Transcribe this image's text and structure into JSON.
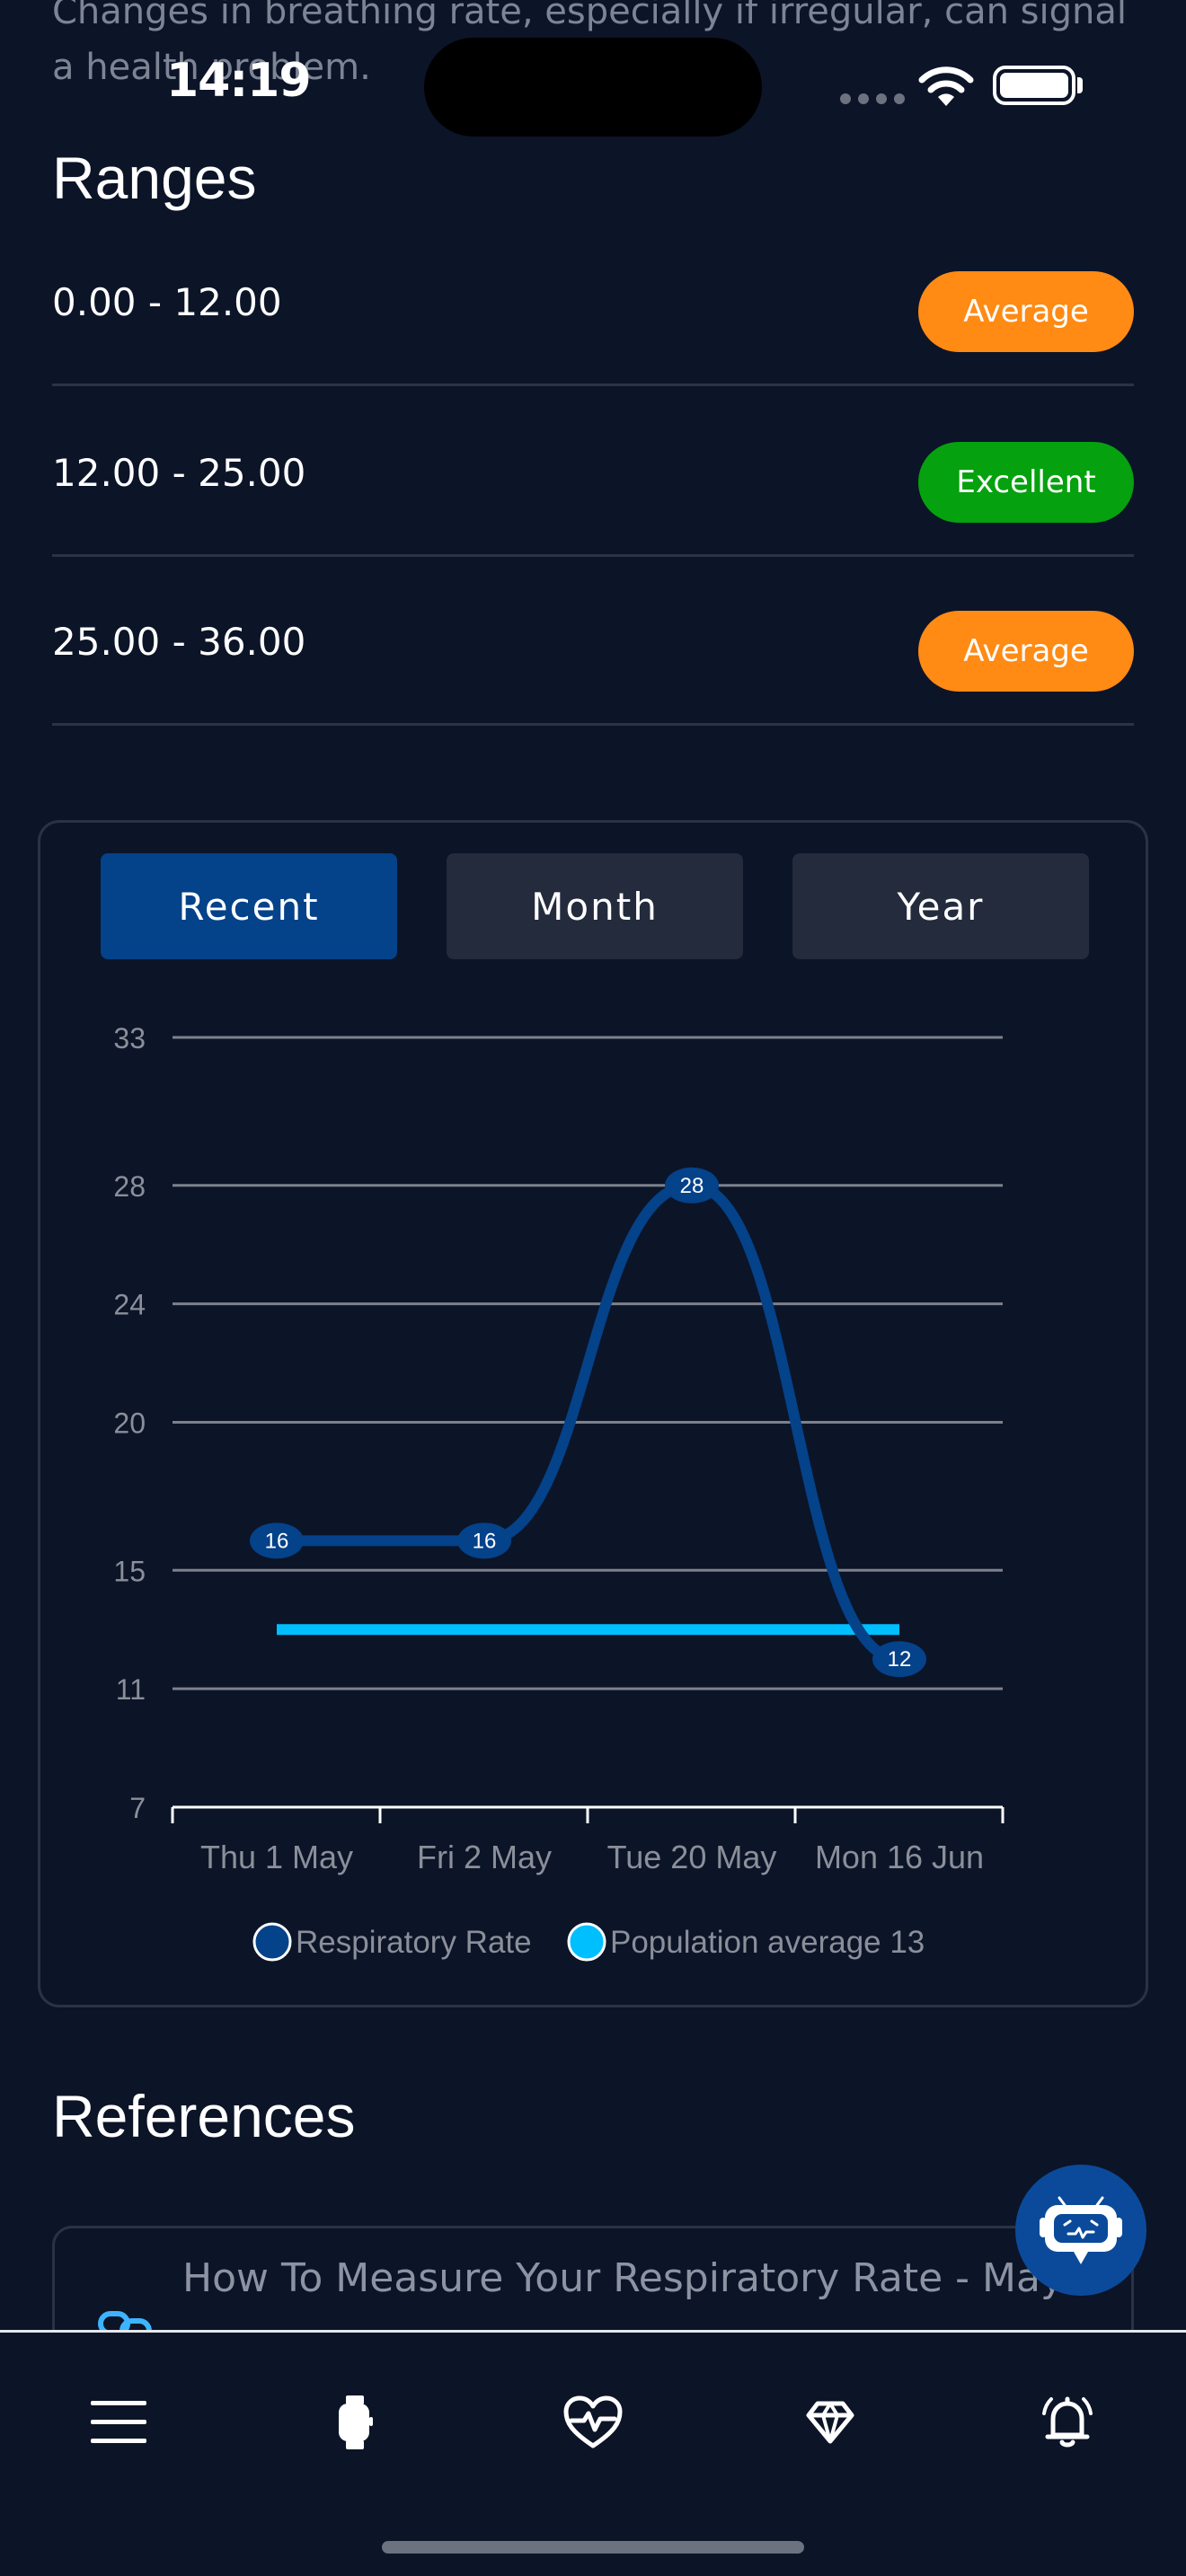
{
  "intro_text": "Changes in breathing rate, especially if irregular, can signal a health problem.",
  "status_bar": {
    "time": "14:19"
  },
  "ranges": {
    "title": "Ranges",
    "items": [
      {
        "label": "0.00 - 12.00",
        "badge": "Average",
        "color": "#ff8a14"
      },
      {
        "label": "12.00 - 25.00",
        "badge": "Excellent",
        "color": "#06a10e"
      },
      {
        "label": "25.00 - 36.00",
        "badge": "Average",
        "color": "#ff8a14"
      }
    ]
  },
  "segments": {
    "items": [
      "Recent",
      "Month",
      "Year"
    ],
    "active": "Recent"
  },
  "chart_data": {
    "type": "line",
    "categories": [
      "Thu 1 May",
      "Fri 2 May",
      "Tue 20 May",
      "Mon 16 Jun"
    ],
    "series": [
      {
        "name": "Respiratory Rate",
        "values": [
          16,
          16,
          28,
          12
        ],
        "color": "#04428a"
      },
      {
        "name": "Population average 13",
        "values": [
          13,
          13,
          13,
          13
        ],
        "color": "#00bfff"
      }
    ],
    "y_ticks": [
      7,
      11,
      15,
      20,
      24,
      28,
      33
    ],
    "ylim": [
      7,
      33
    ],
    "grid": true,
    "legend_position": "bottom"
  },
  "references": {
    "title": "References",
    "items": [
      {
        "label": "How To Measure Your Respiratory Rate - Mayo"
      }
    ]
  },
  "tab_bar": {
    "icons": [
      "menu-icon",
      "watch-icon",
      "heart-pulse-icon",
      "diamond-icon",
      "bell-icon"
    ]
  }
}
